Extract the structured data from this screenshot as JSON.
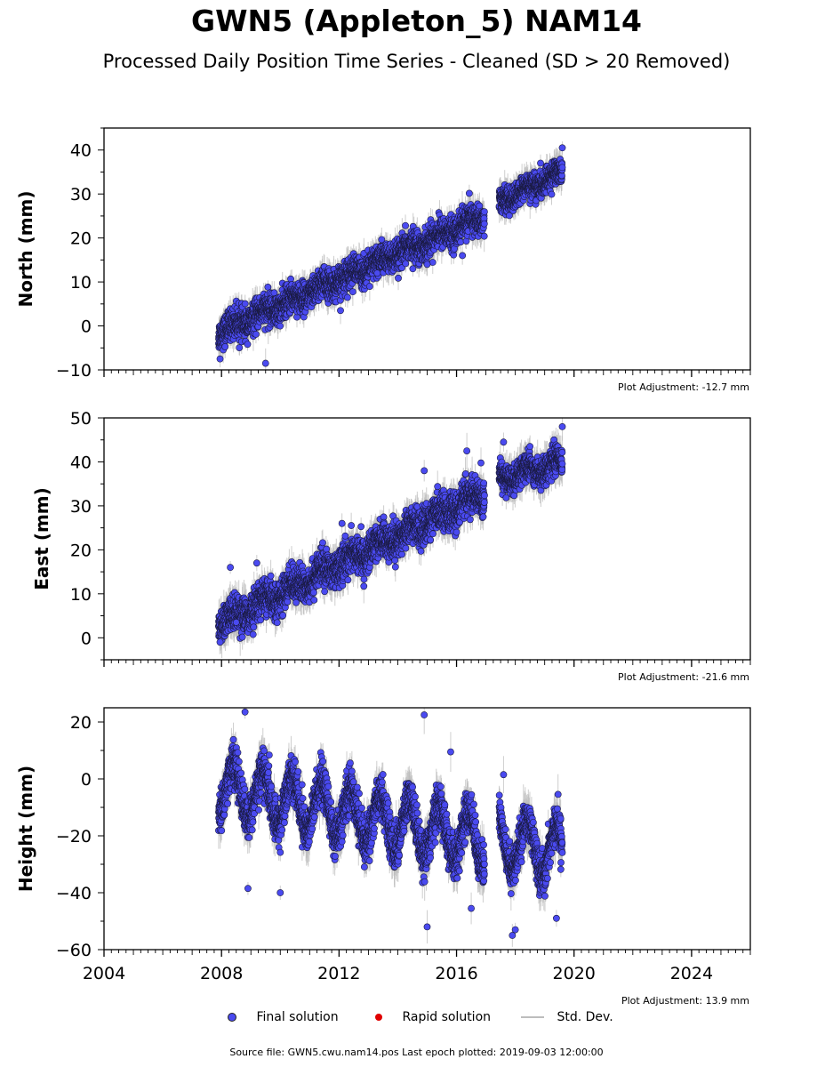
{
  "title": "GWN5 (Appleton_5) NAM14",
  "subtitle": "Processed Daily Position Time Series - Cleaned (SD > 20 Removed)",
  "colors": {
    "final": "#4a4af0",
    "rapid": "#e00000",
    "stddev": "#bdbdbd"
  },
  "legend": {
    "final": "Final solution",
    "rapid": "Rapid solution",
    "stddev": "Std. Dev."
  },
  "source": "Source file: GWN5.cwu.nam14.pos  Last epoch plotted: 2019-09-03 12:00:00",
  "chart_data": [
    {
      "type": "scatter",
      "ylabel": "North (mm)",
      "xlim": [
        2004,
        2026
      ],
      "ylim": [
        -10,
        45
      ],
      "yticks": [
        -10,
        0,
        10,
        20,
        30,
        40
      ],
      "xticks": [],
      "adjustment": "Plot Adjustment: -12.7 mm",
      "series": [
        {
          "name": "Final solution",
          "segments": [
            {
              "x0": 2007.9,
              "x1": 2016.95,
              "y0": -1.5,
              "y1": 25.0,
              "sd": 3.0
            },
            {
              "x0": 2017.45,
              "x1": 2019.6,
              "y0": 28.0,
              "y1": 35.0,
              "sd": 2.5
            }
          ],
          "seasonal_amp": 0.8,
          "outliers": [
            [
              2007.95,
              -7.5
            ],
            [
              2009.5,
              -8.5
            ],
            [
              2012.05,
              3.5
            ],
            [
              2015.0,
              14.0
            ],
            [
              2016.2,
              16.0
            ],
            [
              2013.3,
              12.0
            ],
            [
              2019.6,
              40.5
            ]
          ]
        }
      ]
    },
    {
      "type": "scatter",
      "ylabel": "East (mm)",
      "xlim": [
        2004,
        2026
      ],
      "ylim": [
        -5,
        50
      ],
      "yticks": [
        0,
        10,
        20,
        30,
        40,
        50
      ],
      "xticks": [],
      "adjustment": "Plot Adjustment: -21.6 mm",
      "series": [
        {
          "name": "Final solution",
          "segments": [
            {
              "x0": 2007.9,
              "x1": 2016.95,
              "y0": 3.0,
              "y1": 33.0,
              "sd": 3.5
            },
            {
              "x0": 2017.45,
              "x1": 2019.6,
              "y0": 36.0,
              "y1": 40.0,
              "sd": 2.8
            }
          ],
          "seasonal_amp": 1.2,
          "outliers": [
            [
              2007.95,
              -1.0
            ],
            [
              2008.3,
              16.0
            ],
            [
              2012.1,
              26.0
            ],
            [
              2014.9,
              38.0
            ],
            [
              2016.35,
              42.5
            ],
            [
              2017.6,
              44.5
            ],
            [
              2019.6,
              48.0
            ],
            [
              2018.5,
              43.5
            ],
            [
              2008.5,
              3.5
            ],
            [
              2009.2,
              17.0
            ],
            [
              2016.0,
              24.0
            ]
          ]
        }
      ]
    },
    {
      "type": "scatter",
      "ylabel": "Height (mm)",
      "xlim": [
        2004,
        2026
      ],
      "ylim": [
        -60,
        25
      ],
      "yticks": [
        -60,
        -40,
        -20,
        0,
        20
      ],
      "xticks": [
        2004,
        2008,
        2012,
        2016,
        2020,
        2024
      ],
      "adjustment": "Plot Adjustment: 13.9 mm",
      "series": [
        {
          "name": "Final solution",
          "segments": [
            {
              "x0": 2007.9,
              "x1": 2016.95,
              "y0": -3.0,
              "y1": -22.0,
              "sd": 6.5
            },
            {
              "x0": 2017.45,
              "x1": 2019.6,
              "y0": -22.0,
              "y1": -26.0,
              "sd": 6.0
            }
          ],
          "seasonal_amp": 9.0,
          "outliers": [
            [
              2008.8,
              23.5
            ],
            [
              2014.9,
              22.5
            ],
            [
              2015.0,
              -52.0
            ],
            [
              2017.9,
              -55.0
            ],
            [
              2018.0,
              -53.0
            ],
            [
              2010.0,
              -40.0
            ],
            [
              2008.9,
              -38.5
            ],
            [
              2016.5,
              -45.5
            ],
            [
              2019.4,
              -49.0
            ],
            [
              2017.6,
              1.5
            ],
            [
              2015.8,
              9.5
            ]
          ]
        }
      ]
    }
  ]
}
